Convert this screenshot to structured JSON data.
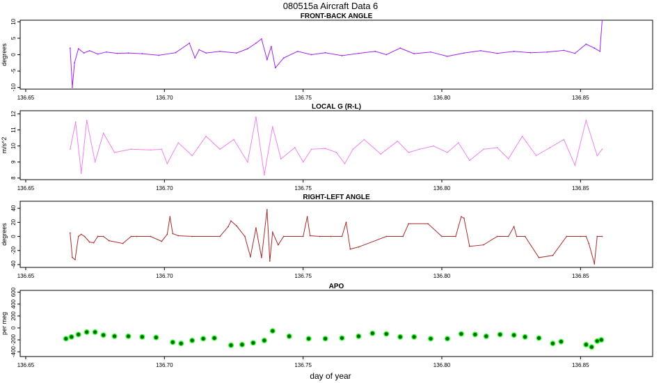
{
  "page": {
    "title": "080515a   Aircraft Data 6",
    "xlabel": "day of year"
  },
  "chart_data": [
    {
      "type": "line",
      "title": "FRONT-BACK ANGLE",
      "ylabel": "degrees",
      "color": "#a020f0",
      "xlim": [
        136.648,
        136.876
      ],
      "ylim": [
        -10.5,
        10.5
      ],
      "x_ticks": [
        "136.65",
        "136.70",
        "136.75",
        "136.80",
        "136.85"
      ],
      "x_tick_values": [
        136.65,
        136.7,
        136.75,
        136.8,
        136.85
      ],
      "y_ticks": [
        "-10",
        "-5",
        "0",
        "5",
        "10"
      ],
      "y_tick_values": [
        -10,
        -5,
        0,
        5,
        10
      ],
      "x": [
        136.666,
        136.6668,
        136.6676,
        136.669,
        136.671,
        136.673,
        136.676,
        136.679,
        136.683,
        136.687,
        136.692,
        136.698,
        136.704,
        136.709,
        136.711,
        136.7125,
        136.715,
        136.72,
        136.726,
        136.73,
        136.733,
        136.735,
        136.737,
        136.7385,
        136.74,
        136.743,
        136.748,
        136.753,
        136.758,
        136.764,
        136.77,
        136.776,
        136.78,
        136.785,
        136.79,
        136.796,
        136.802,
        136.808,
        136.814,
        136.82,
        136.826,
        136.832,
        136.838,
        136.844,
        136.848,
        136.852,
        136.855,
        136.857,
        136.8578
      ],
      "values": [
        2.0,
        -10.0,
        -2.5,
        1.8,
        0.5,
        1.2,
        0.2,
        0.8,
        0.4,
        0.5,
        0.3,
        -0.2,
        0.6,
        3.5,
        -1.0,
        1.5,
        0.5,
        1.0,
        0.5,
        1.8,
        3.5,
        4.8,
        -1.5,
        2.5,
        -4.0,
        -1.0,
        1.0,
        0.0,
        0.6,
        -0.3,
        0.4,
        1.0,
        0.0,
        2.0,
        0.3,
        0.8,
        -0.5,
        0.5,
        1.2,
        0.4,
        1.0,
        0.6,
        0.8,
        1.3,
        0.4,
        3.2,
        2.0,
        1.0,
        10.5
      ]
    },
    {
      "type": "line",
      "title": "LOCAL G (R-L)",
      "ylabel": "m/s^2",
      "color": "#ee82ee",
      "xlim": [
        136.648,
        136.876
      ],
      "ylim": [
        7.9,
        12.2
      ],
      "x_ticks": [
        "136.65",
        "136.70",
        "136.75",
        "136.80",
        "136.85"
      ],
      "x_tick_values": [
        136.65,
        136.7,
        136.75,
        136.8,
        136.85
      ],
      "y_ticks": [
        "8",
        "9",
        "10",
        "11",
        "12"
      ],
      "y_tick_values": [
        8,
        9,
        10,
        11,
        12
      ],
      "x": [
        136.666,
        136.668,
        136.67,
        136.672,
        136.675,
        136.678,
        136.682,
        136.688,
        136.695,
        136.699,
        136.701,
        136.705,
        136.71,
        136.715,
        136.72,
        136.725,
        136.73,
        136.733,
        136.736,
        136.739,
        136.742,
        136.747,
        136.75,
        136.753,
        136.758,
        136.762,
        136.765,
        136.768,
        136.772,
        136.778,
        136.784,
        136.788,
        136.792,
        136.797,
        136.802,
        136.806,
        136.81,
        136.815,
        136.82,
        136.824,
        136.829,
        136.834,
        136.839,
        136.844,
        136.848,
        136.852,
        136.856,
        136.8578
      ],
      "values": [
        9.8,
        11.5,
        8.3,
        11.6,
        9.0,
        10.8,
        9.6,
        9.8,
        9.75,
        9.8,
        8.9,
        10.2,
        9.4,
        10.6,
        9.8,
        10.4,
        9.0,
        11.8,
        8.2,
        11.2,
        9.2,
        9.9,
        9.0,
        9.8,
        9.85,
        9.6,
        8.9,
        9.8,
        10.4,
        9.5,
        10.3,
        9.6,
        9.8,
        10.0,
        9.6,
        10.2,
        9.1,
        9.8,
        9.9,
        9.2,
        10.6,
        9.4,
        9.9,
        10.4,
        8.8,
        11.6,
        9.4,
        9.8
      ]
    },
    {
      "type": "line",
      "title": "RIGHT-LEFT ANGLE",
      "ylabel": "degrees",
      "color": "#a52a2a",
      "xlim": [
        136.648,
        136.876
      ],
      "ylim": [
        -44,
        50
      ],
      "x_ticks": [
        "136.65",
        "136.70",
        "136.75",
        "136.80",
        "136.85"
      ],
      "x_tick_values": [
        136.65,
        136.7,
        136.75,
        136.8,
        136.85
      ],
      "y_ticks": [
        "-40",
        "-20",
        "0",
        "20",
        "40"
      ],
      "y_tick_values": [
        -40,
        -20,
        0,
        20,
        40
      ],
      "x": [
        136.666,
        136.6668,
        136.6678,
        136.669,
        136.67,
        136.6712,
        136.673,
        136.6745,
        136.676,
        136.678,
        136.68,
        136.685,
        136.688,
        136.69,
        136.695,
        136.699,
        136.701,
        136.702,
        136.703,
        136.705,
        136.71,
        136.72,
        136.723,
        136.724,
        136.726,
        136.729,
        136.731,
        136.733,
        136.735,
        136.737,
        136.738,
        136.739,
        136.741,
        136.743,
        136.75,
        136.7515,
        136.7525,
        136.756,
        136.76,
        136.764,
        136.7655,
        136.767,
        136.77,
        136.78,
        136.786,
        136.788,
        136.795,
        136.8,
        136.805,
        136.807,
        136.808,
        136.81,
        136.815,
        136.82,
        136.824,
        136.826,
        136.827,
        136.83,
        136.835,
        136.84,
        136.845,
        136.85,
        136.852,
        136.853,
        136.855,
        136.856,
        136.8578
      ],
      "values": [
        5,
        -30,
        -33,
        0,
        3,
        0,
        -8,
        -9,
        0,
        0,
        -6,
        -10,
        0,
        0,
        0,
        -7,
        3,
        28,
        4,
        1,
        0,
        0,
        14,
        22,
        15,
        0,
        -29,
        12,
        -30,
        38,
        -35,
        6,
        -12,
        0,
        0,
        28,
        1,
        0,
        0,
        0,
        20,
        -18,
        -15,
        0,
        0,
        18,
        18,
        0,
        0,
        28,
        26,
        -14,
        -12,
        0,
        0,
        14,
        0,
        0,
        -30,
        -27,
        0,
        0,
        0,
        -10,
        -39,
        0,
        0
      ]
    },
    {
      "type": "scatter",
      "title": "APO",
      "ylabel": "per meg",
      "color_light": "#00ff00",
      "color_dark": "#006400",
      "xlim": [
        136.648,
        136.876
      ],
      "ylim": [
        -480,
        630
      ],
      "x_ticks": [
        "136.65",
        "136.70",
        "136.75",
        "136.80",
        "136.85"
      ],
      "x_tick_values": [
        136.65,
        136.7,
        136.75,
        136.8,
        136.85
      ],
      "y_ticks": [
        "-400",
        "-200",
        "0",
        "200",
        "400",
        "600"
      ],
      "y_tick_values": [
        -400,
        -200,
        0,
        200,
        400,
        600
      ],
      "x": [
        136.6645,
        136.6665,
        136.669,
        136.672,
        136.675,
        136.678,
        136.682,
        136.687,
        136.692,
        136.697,
        136.703,
        136.706,
        136.71,
        136.714,
        136.718,
        136.724,
        136.728,
        136.732,
        136.736,
        136.739,
        136.745,
        136.752,
        136.758,
        136.764,
        136.77,
        136.775,
        136.78,
        136.785,
        136.79,
        136.796,
        136.802,
        136.807,
        136.812,
        136.816,
        136.821,
        136.826,
        136.83,
        136.835,
        136.84,
        136.843,
        136.852,
        136.854,
        136.856,
        136.8575
      ],
      "values": [
        -180,
        -150,
        -110,
        -70,
        -70,
        -120,
        -140,
        -140,
        -150,
        -160,
        -240,
        -260,
        -210,
        -180,
        -170,
        -290,
        -280,
        -250,
        -210,
        -50,
        -140,
        -180,
        -180,
        -170,
        -140,
        -90,
        -100,
        -150,
        -150,
        -180,
        -180,
        -100,
        -110,
        -140,
        -110,
        -120,
        -150,
        -170,
        -260,
        -230,
        -280,
        -320,
        -220,
        -200
      ]
    }
  ]
}
